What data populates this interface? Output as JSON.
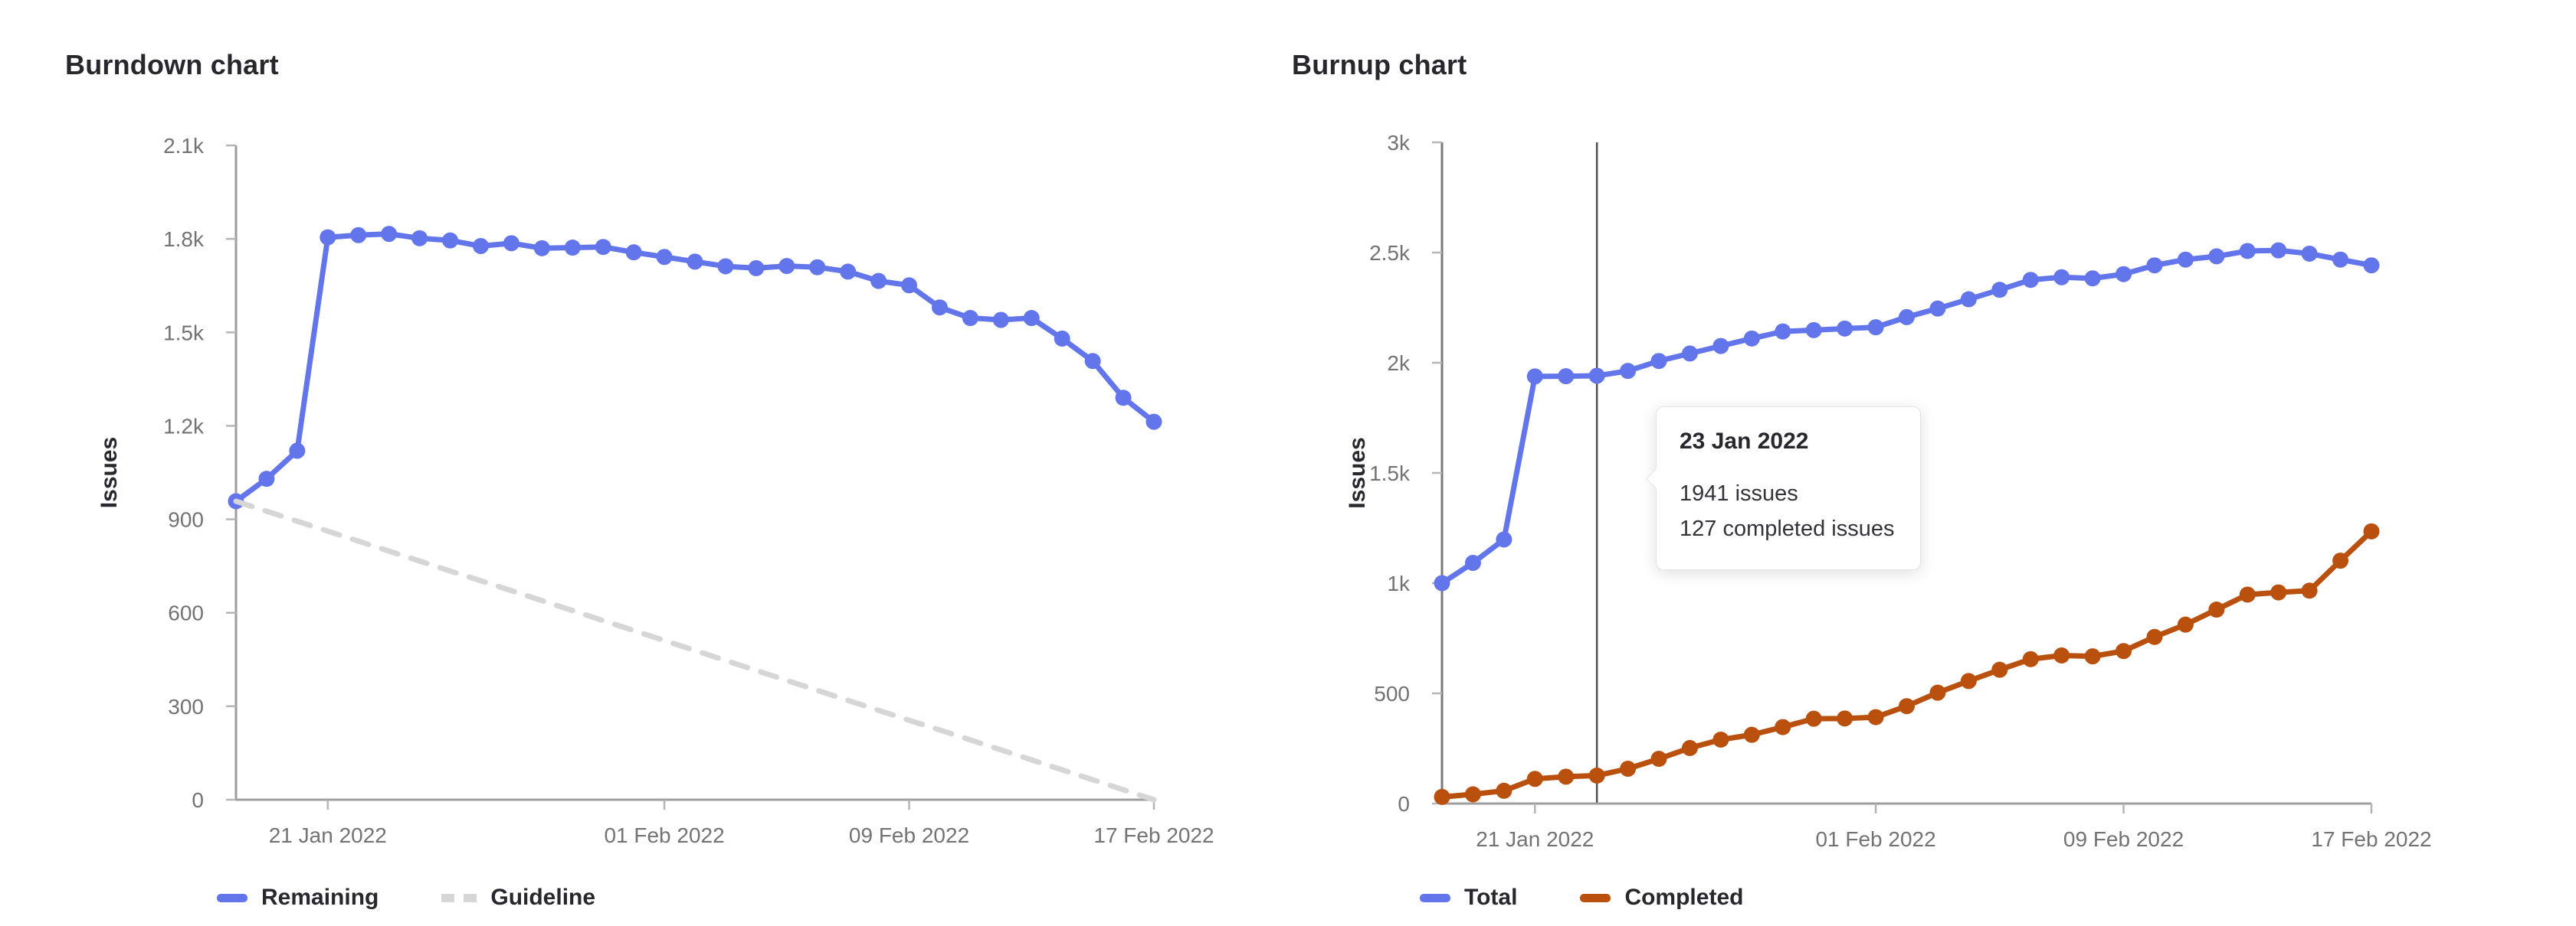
{
  "tooltip": {
    "title": "23 Jan 2022",
    "lines": [
      "1941 issues",
      "127 completed issues"
    ]
  },
  "colors": {
    "blue": "#6375eb",
    "orange": "#b9500e",
    "guideline_gray": "#d6d6d6",
    "axis_gray": "#9e9e9e",
    "tick_label_gray": "#737373",
    "text_dark": "#28272d",
    "hover_line": "#4f4f4f"
  },
  "chart_data": [
    {
      "type": "line",
      "title": "Burndown chart",
      "ylabel": "Issues",
      "ylim": [
        0,
        2100
      ],
      "grid": false,
      "legend_position": "bottom-left",
      "x": [
        "18 Jan 2022",
        "19 Jan 2022",
        "20 Jan 2022",
        "21 Jan 2022",
        "22 Jan 2022",
        "23 Jan 2022",
        "24 Jan 2022",
        "25 Jan 2022",
        "26 Jan 2022",
        "27 Jan 2022",
        "28 Jan 2022",
        "29 Jan 2022",
        "30 Jan 2022",
        "31 Jan 2022",
        "01 Feb 2022",
        "02 Feb 2022",
        "03 Feb 2022",
        "04 Feb 2022",
        "05 Feb 2022",
        "06 Feb 2022",
        "07 Feb 2022",
        "08 Feb 2022",
        "09 Feb 2022",
        "10 Feb 2022",
        "11 Feb 2022",
        "12 Feb 2022",
        "13 Feb 2022",
        "14 Feb 2022",
        "15 Feb 2022",
        "16 Feb 2022",
        "17 Feb 2022"
      ],
      "x_ticks": [
        {
          "i": 3,
          "label": "21 Jan 2022"
        },
        {
          "i": 14,
          "label": "01 Feb 2022"
        },
        {
          "i": 22,
          "label": "09 Feb 2022"
        },
        {
          "i": 30,
          "label": "17 Feb 2022"
        }
      ],
      "y_ticks": [
        {
          "v": 0,
          "label": "0"
        },
        {
          "v": 300,
          "label": "300"
        },
        {
          "v": 600,
          "label": "600"
        },
        {
          "v": 900,
          "label": "900"
        },
        {
          "v": 1200,
          "label": "1.2k"
        },
        {
          "v": 1500,
          "label": "1.5k"
        },
        {
          "v": 1800,
          "label": "1.8k"
        },
        {
          "v": 2100,
          "label": "2.1k"
        }
      ],
      "series": [
        {
          "name": "Remaining",
          "color": "#6375eb",
          "style": "solid",
          "points": true,
          "values": [
            958,
            1030,
            1120,
            1805,
            1812,
            1816,
            1802,
            1795,
            1777,
            1786,
            1770,
            1772,
            1774,
            1757,
            1742,
            1727,
            1712,
            1706,
            1713,
            1709,
            1695,
            1665,
            1651,
            1580,
            1546,
            1540,
            1546,
            1480,
            1408,
            1290,
            1213
          ]
        },
        {
          "name": "Guideline",
          "color": "#d6d6d6",
          "style": "dashed",
          "points": false,
          "values": [
            958,
            926,
            894,
            862,
            830,
            798,
            766,
            734,
            703,
            671,
            639,
            607,
            575,
            543,
            511,
            479,
            447,
            415,
            383,
            351,
            319,
            287,
            255,
            224,
            192,
            160,
            128,
            96,
            64,
            32,
            0
          ]
        }
      ]
    },
    {
      "type": "line",
      "title": "Burnup chart",
      "ylabel": "Issues",
      "ylim": [
        0,
        3000
      ],
      "grid": false,
      "legend_position": "bottom-left",
      "hover": {
        "index": 5,
        "date": "23 Jan 2022",
        "total": 1941,
        "completed": 127
      },
      "x": [
        "18 Jan 2022",
        "19 Jan 2022",
        "20 Jan 2022",
        "21 Jan 2022",
        "22 Jan 2022",
        "23 Jan 2022",
        "24 Jan 2022",
        "25 Jan 2022",
        "26 Jan 2022",
        "27 Jan 2022",
        "28 Jan 2022",
        "29 Jan 2022",
        "30 Jan 2022",
        "31 Jan 2022",
        "01 Feb 2022",
        "02 Feb 2022",
        "03 Feb 2022",
        "04 Feb 2022",
        "05 Feb 2022",
        "06 Feb 2022",
        "07 Feb 2022",
        "08 Feb 2022",
        "09 Feb 2022",
        "10 Feb 2022",
        "11 Feb 2022",
        "12 Feb 2022",
        "13 Feb 2022",
        "14 Feb 2022",
        "15 Feb 2022",
        "16 Feb 2022",
        "17 Feb 2022"
      ],
      "x_ticks": [
        {
          "i": 3,
          "label": "21 Jan 2022"
        },
        {
          "i": 14,
          "label": "01 Feb 2022"
        },
        {
          "i": 22,
          "label": "09 Feb 2022"
        },
        {
          "i": 30,
          "label": "17 Feb 2022"
        }
      ],
      "y_ticks": [
        {
          "v": 0,
          "label": "0"
        },
        {
          "v": 500,
          "label": "500"
        },
        {
          "v": 1000,
          "label": "1k"
        },
        {
          "v": 1500,
          "label": "1.5k"
        },
        {
          "v": 2000,
          "label": "2k"
        },
        {
          "v": 2500,
          "label": "2.5k"
        },
        {
          "v": 3000,
          "label": "3k"
        }
      ],
      "series": [
        {
          "name": "Total",
          "color": "#6375eb",
          "style": "solid",
          "points": true,
          "values": [
            1000,
            1092,
            1198,
            1938,
            1939,
            1941,
            1963,
            2008,
            2042,
            2076,
            2110,
            2142,
            2148,
            2155,
            2161,
            2207,
            2246,
            2288,
            2331,
            2376,
            2388,
            2383,
            2402,
            2442,
            2468,
            2483,
            2507,
            2510,
            2495,
            2468,
            2442
          ]
        },
        {
          "name": "Completed",
          "color": "#b9500e",
          "style": "solid",
          "points": true,
          "values": [
            30,
            42,
            58,
            112,
            122,
            127,
            158,
            203,
            252,
            290,
            312,
            347,
            385,
            386,
            392,
            442,
            503,
            556,
            607,
            655,
            672,
            668,
            692,
            756,
            812,
            880,
            948,
            958,
            966,
            1102,
            1235
          ]
        }
      ]
    }
  ]
}
